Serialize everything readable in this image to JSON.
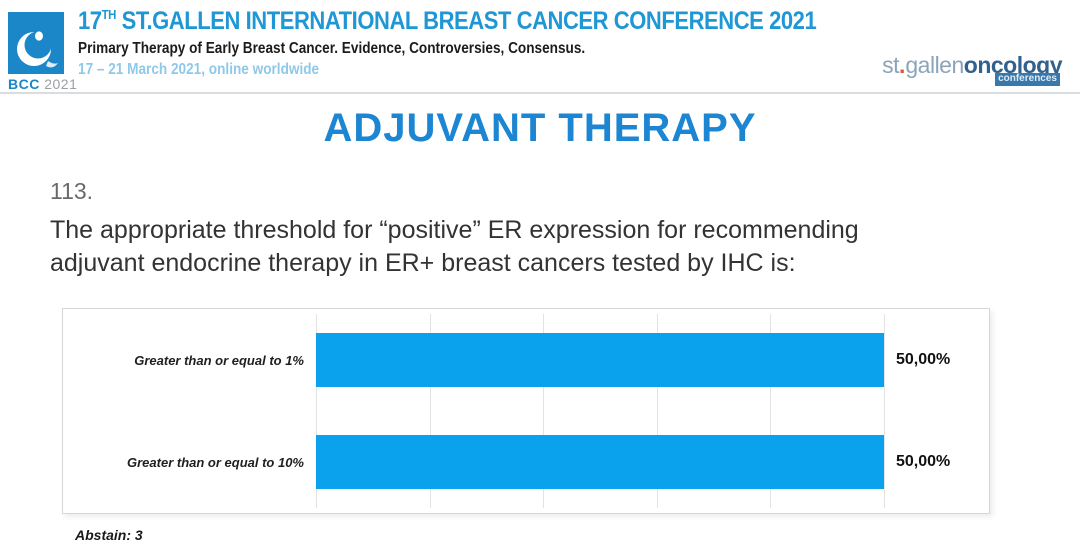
{
  "header": {
    "bcc_logo": {
      "acronym": "BCC",
      "year": "2021"
    },
    "title_number": "17",
    "title_superscript": "TH",
    "title_rest": " ST.GALLEN INTERNATIONAL BREAST CANCER CONFERENCE 2021",
    "subtitle": "Primary Therapy of Early Breast Cancer. Evidence, Controversies, Consensus.",
    "date_line": "17 – 21 March 2021, online worldwide",
    "stgallen_logo": {
      "part_st": "st",
      "part_dot": ".",
      "part_gallen": "gallen",
      "part_oncology": "oncology",
      "part_conferences": "conferences"
    }
  },
  "main": {
    "section_title": "ADJUVANT THERAPY",
    "question_number": "113.",
    "question_lines": [
      "The appropriate threshold for “positive” ER expression for recommending",
      "adjuvant endocrine therapy in ER+ breast cancers tested by IHC is:"
    ]
  },
  "chart_data": {
    "type": "bar",
    "orientation": "horizontal",
    "categories": [
      "Greater than or equal to 1%",
      "Greater than or equal to 10%"
    ],
    "values": [
      50,
      50
    ],
    "value_labels": [
      "50,00%",
      "50,00%"
    ],
    "xlim": [
      0,
      50
    ],
    "grid": true,
    "gridline_count": 6,
    "bar_color": "#0aa1ed",
    "legend": "none",
    "title": ""
  },
  "footer": {
    "abstain_note": "Abstain: 3"
  },
  "colors": {
    "header_title_blue": "#1f97d4",
    "main_title_blue": "#1c86d2",
    "date_light_blue": "#8fc9e9",
    "bar_blue": "#0aa1ed",
    "bcc_logo_blue": "#1b86c8",
    "stgallen_gray_blue": "#8ba4ba",
    "oncology_dark_blue": "#31618e",
    "orange_dot": "#d95b2a"
  }
}
